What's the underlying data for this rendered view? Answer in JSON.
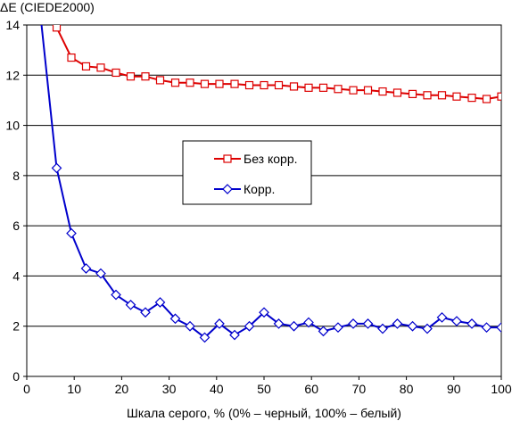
{
  "chart_data": {
    "type": "line",
    "title": "",
    "ylabel": "ΔE (CIEDE2000)",
    "xlabel": "Шкала серого, % (0% – черный, 100% – белый)",
    "xlim": [
      0,
      100
    ],
    "ylim": [
      0,
      14
    ],
    "xticks": [
      0,
      10,
      20,
      30,
      40,
      50,
      60,
      70,
      80,
      90,
      100
    ],
    "yticks": [
      0,
      2,
      4,
      6,
      8,
      10,
      12,
      14
    ],
    "grid": "horizontal",
    "legend_position": "center",
    "series": [
      {
        "name": "Без корр.",
        "color": "#dd0000",
        "marker": "square",
        "x": [
          5,
          6.3,
          9.4,
          12.5,
          15.6,
          18.8,
          21.9,
          25,
          28.1,
          31.3,
          34.4,
          37.5,
          40.6,
          43.8,
          46.9,
          50,
          53.1,
          56.3,
          59.4,
          62.5,
          65.6,
          68.8,
          71.9,
          75,
          78.1,
          81.3,
          84.4,
          87.5,
          90.6,
          93.8,
          96.9,
          100
        ],
        "values": [
          14.3,
          13.9,
          12.7,
          12.35,
          12.3,
          12.1,
          11.95,
          11.95,
          11.8,
          11.7,
          11.7,
          11.65,
          11.65,
          11.65,
          11.6,
          11.6,
          11.6,
          11.55,
          11.5,
          11.5,
          11.45,
          11.4,
          11.4,
          11.35,
          11.3,
          11.25,
          11.2,
          11.2,
          11.15,
          11.1,
          11.05,
          11.15
        ]
      },
      {
        "name": "Корр.",
        "color": "#0000cc",
        "marker": "diamond",
        "x": [
          3,
          6.3,
          9.4,
          12.5,
          15.6,
          18.8,
          21.9,
          25,
          28.1,
          31.3,
          34.4,
          37.5,
          40.6,
          43.8,
          46.9,
          50,
          53.1,
          56.3,
          59.4,
          62.5,
          65.6,
          68.8,
          71.9,
          75,
          78.1,
          81.3,
          84.4,
          87.5,
          90.6,
          93.8,
          96.9,
          100
        ],
        "values": [
          14.2,
          8.3,
          5.7,
          4.3,
          4.1,
          3.25,
          2.85,
          2.55,
          2.95,
          2.3,
          2.0,
          1.55,
          2.1,
          1.65,
          2.0,
          2.55,
          2.1,
          2.0,
          2.15,
          1.8,
          1.95,
          2.1,
          2.1,
          1.9,
          2.1,
          2.0,
          1.9,
          2.35,
          2.2,
          2.1,
          1.95,
          1.95
        ]
      }
    ]
  }
}
